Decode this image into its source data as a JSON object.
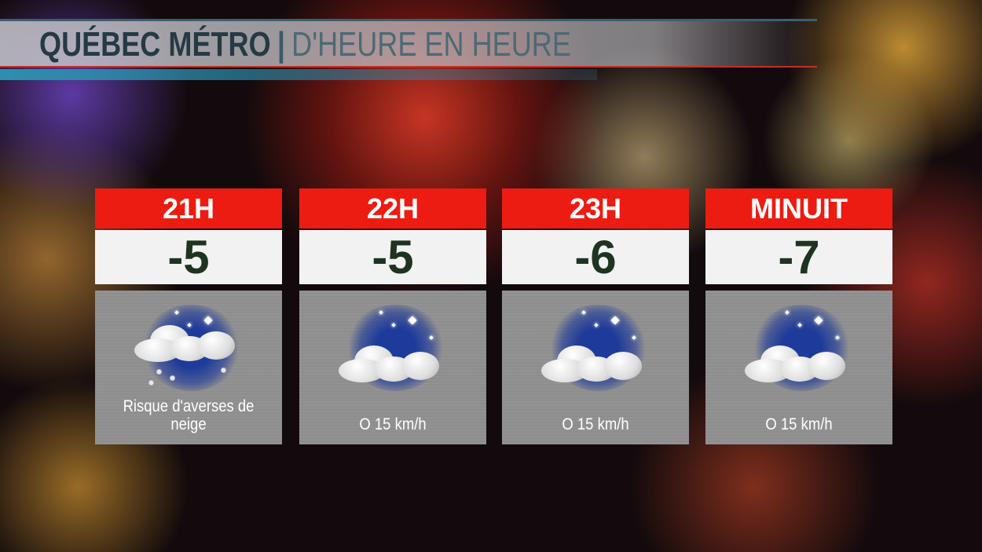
{
  "header": {
    "title": "QUÉBEC MÉTRO",
    "separator": "|",
    "subtitle": "D'HEURE EN HEURE"
  },
  "forecast": [
    {
      "hour": "21H",
      "temp": "-5",
      "icon": "cloudy-night-snow-icon",
      "text": "Risque d'averses de neige"
    },
    {
      "hour": "22H",
      "temp": "-5",
      "icon": "cloudy-night-icon",
      "text": "O 15 km/h"
    },
    {
      "hour": "23H",
      "temp": "-6",
      "icon": "cloudy-night-icon",
      "text": "O 15 km/h"
    },
    {
      "hour": "MINUIT",
      "temp": "-7",
      "icon": "cloudy-night-icon",
      "text": "O 15 km/h"
    }
  ],
  "colors": {
    "header_red": "#ec1c12",
    "temp_text": "#1e3320",
    "banner_accent": "#2e8fae"
  }
}
